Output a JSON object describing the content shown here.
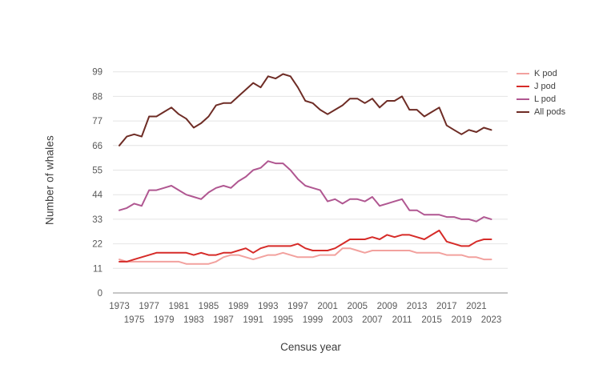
{
  "y_axis_title": "Number of whales",
  "x_axis_title": "Census year",
  "legend": {
    "position": "top-right",
    "items": [
      {
        "label": "K pod",
        "color": "#f2a19e"
      },
      {
        "label": "J pod",
        "color": "#d62b28"
      },
      {
        "label": "L pod",
        "color": "#b05791"
      },
      {
        "label": "All pods",
        "color": "#6e2c25"
      }
    ]
  },
  "chart_data": {
    "type": "line",
    "title": "",
    "xlabel": "Census year",
    "ylabel": "Number of whales",
    "grid": "horizontal",
    "legend_position": "top-right",
    "ylim": [
      0,
      104
    ],
    "xlim": [
      1973,
      2023
    ],
    "yticks": [
      0,
      11,
      22,
      33,
      44,
      55,
      66,
      77,
      88,
      99
    ],
    "xticks_row1": [
      1973,
      1977,
      1981,
      1985,
      1989,
      1993,
      1997,
      2001,
      2005,
      2009,
      2013,
      2017,
      2021
    ],
    "xticks_row2": [
      1975,
      1979,
      1983,
      1987,
      1991,
      1995,
      1999,
      2003,
      2007,
      2011,
      2015,
      2019,
      2023
    ],
    "x": [
      1973,
      1974,
      1975,
      1976,
      1977,
      1978,
      1979,
      1980,
      1981,
      1982,
      1983,
      1984,
      1985,
      1986,
      1987,
      1988,
      1989,
      1990,
      1991,
      1992,
      1993,
      1994,
      1995,
      1996,
      1997,
      1998,
      1999,
      2000,
      2001,
      2002,
      2003,
      2004,
      2005,
      2006,
      2007,
      2008,
      2009,
      2010,
      2011,
      2012,
      2013,
      2014,
      2015,
      2016,
      2017,
      2018,
      2019,
      2020,
      2021,
      2022,
      2023
    ],
    "series": [
      {
        "name": "K pod",
        "color": "#f2a19e",
        "values": [
          15,
          14,
          14,
          14,
          14,
          14,
          14,
          14,
          14,
          13,
          13,
          13,
          13,
          14,
          16,
          17,
          17,
          16,
          15,
          16,
          17,
          17,
          18,
          17,
          16,
          16,
          16,
          17,
          17,
          17,
          20,
          20,
          19,
          18,
          19,
          19,
          19,
          19,
          19,
          19,
          18,
          18,
          18,
          18,
          17,
          17,
          17,
          16,
          16,
          15,
          15
        ]
      },
      {
        "name": "J pod",
        "color": "#d62b28",
        "values": [
          14,
          14,
          15,
          16,
          17,
          18,
          18,
          18,
          18,
          18,
          17,
          18,
          17,
          17,
          18,
          18,
          19,
          20,
          18,
          20,
          21,
          21,
          21,
          21,
          22,
          20,
          19,
          19,
          19,
          20,
          22,
          24,
          24,
          24,
          25,
          24,
          26,
          25,
          26,
          26,
          25,
          24,
          26,
          28,
          23,
          22,
          21,
          21,
          23,
          24,
          24
        ]
      },
      {
        "name": "L pod",
        "color": "#b05791",
        "values": [
          37,
          38,
          40,
          39,
          46,
          46,
          47,
          48,
          46,
          44,
          43,
          42,
          45,
          47,
          48,
          47,
          50,
          52,
          55,
          56,
          59,
          58,
          58,
          55,
          51,
          48,
          47,
          46,
          41,
          42,
          40,
          42,
          42,
          41,
          43,
          39,
          40,
          41,
          42,
          37,
          37,
          35,
          35,
          35,
          34,
          34,
          33,
          33,
          32,
          34,
          33
        ]
      },
      {
        "name": "All pods",
        "color": "#6e2c25",
        "values": [
          66,
          70,
          71,
          70,
          79,
          79,
          81,
          83,
          80,
          78,
          74,
          76,
          79,
          84,
          85,
          85,
          88,
          91,
          94,
          92,
          97,
          96,
          98,
          97,
          92,
          86,
          85,
          82,
          80,
          82,
          84,
          87,
          87,
          85,
          87,
          83,
          86,
          86,
          88,
          82,
          82,
          79,
          81,
          83,
          75,
          73,
          71,
          73,
          72,
          74,
          73
        ]
      }
    ]
  }
}
